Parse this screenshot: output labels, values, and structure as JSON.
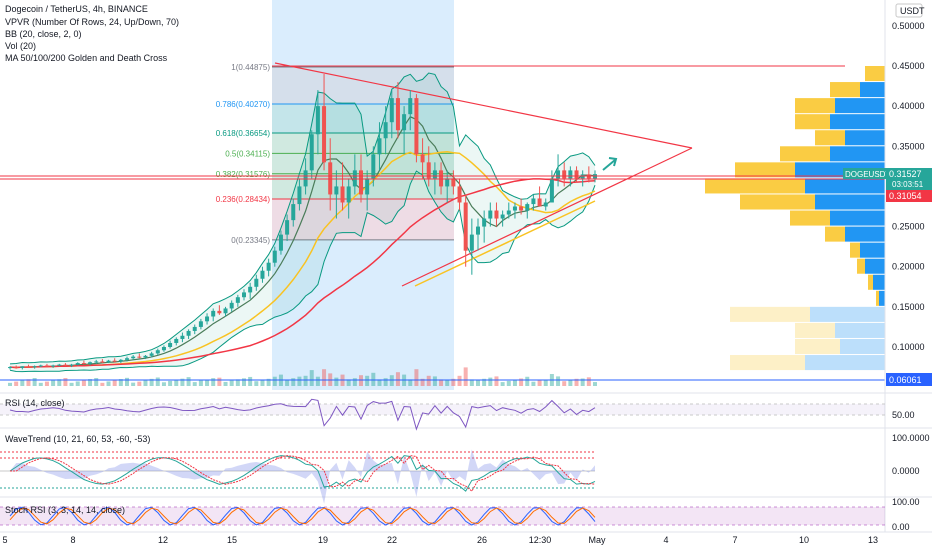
{
  "header": {
    "title": "Dogecoin / TetherUS, 4h, BINANCE",
    "indicators": [
      "VPVR (Number Of Rows, 24, Up/Down, 70)",
      "BB (20, close, 2, 0)",
      "Vol (20)",
      "MA 50/100/200 Golden and Death Cross"
    ]
  },
  "currency": "USDT",
  "chart_data": {
    "type": "candlestick",
    "symbol": "DOGEUSDT",
    "timeframe": "4h",
    "ylim": [
      0.06,
      0.51
    ],
    "price_ticks": [
      "0.50000",
      "0.45000",
      "0.40000",
      "0.35000",
      "0.30000",
      "0.25000",
      "0.20000",
      "0.15000",
      "0.10000"
    ],
    "x_ticks": [
      "5",
      "8",
      "12",
      "15",
      "19",
      "22",
      "26",
      "12:30",
      "May",
      "4",
      "7",
      "10",
      "13"
    ],
    "last_price_label": "DOGEUSDT",
    "last_price": "0.31527",
    "countdown": "03:03:51",
    "price_tag_red": "0.31054",
    "price_tag_blue": "0.06061",
    "fibonacci": [
      {
        "level": "1(0.44875)",
        "price": 0.44875,
        "color": "#787b86"
      },
      {
        "level": "0.786(0.40270)",
        "price": 0.4027,
        "color": "#2196f3"
      },
      {
        "level": "0.618(0.36654)",
        "price": 0.36654,
        "color": "#089981"
      },
      {
        "level": "0.5(0.34115)",
        "price": 0.34115,
        "color": "#4caf50"
      },
      {
        "level": "0.382(0.31576)",
        "price": 0.31576,
        "color": "#4caf50"
      },
      {
        "level": "0.236(0.28434)",
        "price": 0.28434,
        "color": "#f23645"
      },
      {
        "level": "0(0.23345)",
        "price": 0.23345,
        "color": "#787b86"
      }
    ],
    "ohlc_series": [
      [
        0.074,
        0.076,
        0.072,
        0.075
      ],
      [
        0.075,
        0.077,
        0.073,
        0.074
      ],
      [
        0.074,
        0.076,
        0.072,
        0.076
      ],
      [
        0.076,
        0.078,
        0.074,
        0.075
      ],
      [
        0.075,
        0.077,
        0.073,
        0.076
      ],
      [
        0.076,
        0.078,
        0.075,
        0.077
      ],
      [
        0.077,
        0.079,
        0.075,
        0.076
      ],
      [
        0.076,
        0.078,
        0.074,
        0.077
      ],
      [
        0.077,
        0.079,
        0.076,
        0.078
      ],
      [
        0.078,
        0.08,
        0.076,
        0.077
      ],
      [
        0.077,
        0.079,
        0.075,
        0.078
      ],
      [
        0.078,
        0.081,
        0.077,
        0.08
      ],
      [
        0.08,
        0.083,
        0.078,
        0.079
      ],
      [
        0.079,
        0.082,
        0.077,
        0.081
      ],
      [
        0.081,
        0.084,
        0.079,
        0.082
      ],
      [
        0.082,
        0.085,
        0.08,
        0.081
      ],
      [
        0.081,
        0.084,
        0.08,
        0.083
      ],
      [
        0.083,
        0.086,
        0.081,
        0.082
      ],
      [
        0.082,
        0.085,
        0.08,
        0.084
      ],
      [
        0.084,
        0.088,
        0.082,
        0.086
      ],
      [
        0.086,
        0.09,
        0.084,
        0.088
      ],
      [
        0.088,
        0.092,
        0.086,
        0.087
      ],
      [
        0.087,
        0.09,
        0.085,
        0.089
      ],
      [
        0.089,
        0.094,
        0.087,
        0.092
      ],
      [
        0.092,
        0.098,
        0.09,
        0.096
      ],
      [
        0.096,
        0.102,
        0.094,
        0.1
      ],
      [
        0.1,
        0.108,
        0.098,
        0.105
      ],
      [
        0.105,
        0.112,
        0.102,
        0.11
      ],
      [
        0.11,
        0.118,
        0.106,
        0.114
      ],
      [
        0.114,
        0.122,
        0.11,
        0.12
      ],
      [
        0.12,
        0.128,
        0.116,
        0.125
      ],
      [
        0.125,
        0.135,
        0.122,
        0.132
      ],
      [
        0.132,
        0.142,
        0.128,
        0.138
      ],
      [
        0.138,
        0.148,
        0.132,
        0.145
      ],
      [
        0.145,
        0.152,
        0.14,
        0.142
      ],
      [
        0.142,
        0.15,
        0.138,
        0.148
      ],
      [
        0.148,
        0.158,
        0.144,
        0.155
      ],
      [
        0.155,
        0.165,
        0.15,
        0.162
      ],
      [
        0.162,
        0.172,
        0.158,
        0.168
      ],
      [
        0.168,
        0.18,
        0.16,
        0.175
      ],
      [
        0.175,
        0.19,
        0.17,
        0.185
      ],
      [
        0.185,
        0.2,
        0.18,
        0.195
      ],
      [
        0.195,
        0.21,
        0.188,
        0.205
      ],
      [
        0.205,
        0.225,
        0.2,
        0.22
      ],
      [
        0.22,
        0.245,
        0.215,
        0.24
      ],
      [
        0.24,
        0.265,
        0.232,
        0.258
      ],
      [
        0.258,
        0.285,
        0.25,
        0.278
      ],
      [
        0.278,
        0.31,
        0.27,
        0.3
      ],
      [
        0.3,
        0.335,
        0.29,
        0.32
      ],
      [
        0.32,
        0.37,
        0.31,
        0.365
      ],
      [
        0.365,
        0.42,
        0.34,
        0.4
      ],
      [
        0.4,
        0.44,
        0.32,
        0.33
      ],
      [
        0.33,
        0.36,
        0.27,
        0.29
      ],
      [
        0.29,
        0.32,
        0.26,
        0.3
      ],
      [
        0.3,
        0.33,
        0.27,
        0.28
      ],
      [
        0.28,
        0.31,
        0.26,
        0.3
      ],
      [
        0.3,
        0.34,
        0.29,
        0.32
      ],
      [
        0.32,
        0.34,
        0.28,
        0.29
      ],
      [
        0.29,
        0.32,
        0.27,
        0.31
      ],
      [
        0.31,
        0.35,
        0.3,
        0.34
      ],
      [
        0.34,
        0.38,
        0.32,
        0.36
      ],
      [
        0.36,
        0.4,
        0.34,
        0.38
      ],
      [
        0.38,
        0.42,
        0.36,
        0.41
      ],
      [
        0.41,
        0.43,
        0.36,
        0.37
      ],
      [
        0.37,
        0.4,
        0.34,
        0.39
      ],
      [
        0.39,
        0.42,
        0.37,
        0.41
      ],
      [
        0.41,
        0.415,
        0.33,
        0.34
      ],
      [
        0.34,
        0.36,
        0.31,
        0.33
      ],
      [
        0.33,
        0.35,
        0.3,
        0.31
      ],
      [
        0.31,
        0.33,
        0.29,
        0.32
      ],
      [
        0.32,
        0.33,
        0.29,
        0.3
      ],
      [
        0.3,
        0.32,
        0.28,
        0.31
      ],
      [
        0.31,
        0.32,
        0.29,
        0.3
      ],
      [
        0.3,
        0.31,
        0.27,
        0.28
      ],
      [
        0.28,
        0.29,
        0.2,
        0.22
      ],
      [
        0.22,
        0.26,
        0.19,
        0.24
      ],
      [
        0.24,
        0.26,
        0.22,
        0.25
      ],
      [
        0.25,
        0.27,
        0.23,
        0.26
      ],
      [
        0.26,
        0.28,
        0.25,
        0.27
      ],
      [
        0.27,
        0.28,
        0.25,
        0.26
      ],
      [
        0.26,
        0.27,
        0.25,
        0.265
      ],
      [
        0.265,
        0.28,
        0.26,
        0.27
      ],
      [
        0.27,
        0.28,
        0.26,
        0.275
      ],
      [
        0.275,
        0.285,
        0.265,
        0.27
      ],
      [
        0.27,
        0.28,
        0.26,
        0.278
      ],
      [
        0.278,
        0.29,
        0.27,
        0.285
      ],
      [
        0.285,
        0.3,
        0.28,
        0.275
      ],
      [
        0.275,
        0.285,
        0.27,
        0.28
      ],
      [
        0.28,
        0.32,
        0.28,
        0.31
      ],
      [
        0.31,
        0.34,
        0.3,
        0.32
      ],
      [
        0.32,
        0.33,
        0.3,
        0.31
      ],
      [
        0.31,
        0.325,
        0.3,
        0.32
      ],
      [
        0.32,
        0.325,
        0.305,
        0.31
      ],
      [
        0.31,
        0.32,
        0.3,
        0.315
      ],
      [
        0.315,
        0.325,
        0.305,
        0.31
      ],
      [
        0.31,
        0.32,
        0.305,
        0.3153
      ]
    ]
  },
  "panes": {
    "rsi": {
      "label": "RSI (14, close)",
      "tick": "50.00"
    },
    "wavetrend": {
      "label": "WaveTrend (10, 21, 60, 53, -60, -53)",
      "ticks": [
        "100.0000",
        "0.0000"
      ]
    },
    "stoch": {
      "label": "Stoch RSI (3, 3, 14, 14, close)",
      "ticks": [
        "100.00",
        "0.00"
      ]
    }
  },
  "colors": {
    "up": "#26a69a",
    "down": "#ef5350",
    "fib_band": "#bbdefb",
    "ma50": "#f9c322",
    "ma100": "#f23645",
    "bb": "#089981",
    "ma200": "#4a7c59",
    "rsi": "#7e57c2"
  }
}
